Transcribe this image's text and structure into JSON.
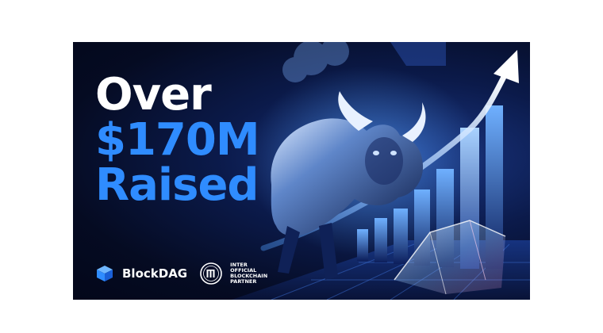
{
  "headline": {
    "line1": "Over",
    "line2": "$170M",
    "line3": "Raised"
  },
  "brand": {
    "name": "BlockDAG",
    "icon": "cube-logo-icon"
  },
  "partner": {
    "icon": "inter-crest-icon",
    "line1": "INTER",
    "line2": "OFFICIAL",
    "line3": "BLOCKCHAIN",
    "line4": "PARTNER"
  },
  "colors": {
    "background": "#050b22",
    "accent_blue": "#2f8cff",
    "text_white": "#ffffff"
  }
}
